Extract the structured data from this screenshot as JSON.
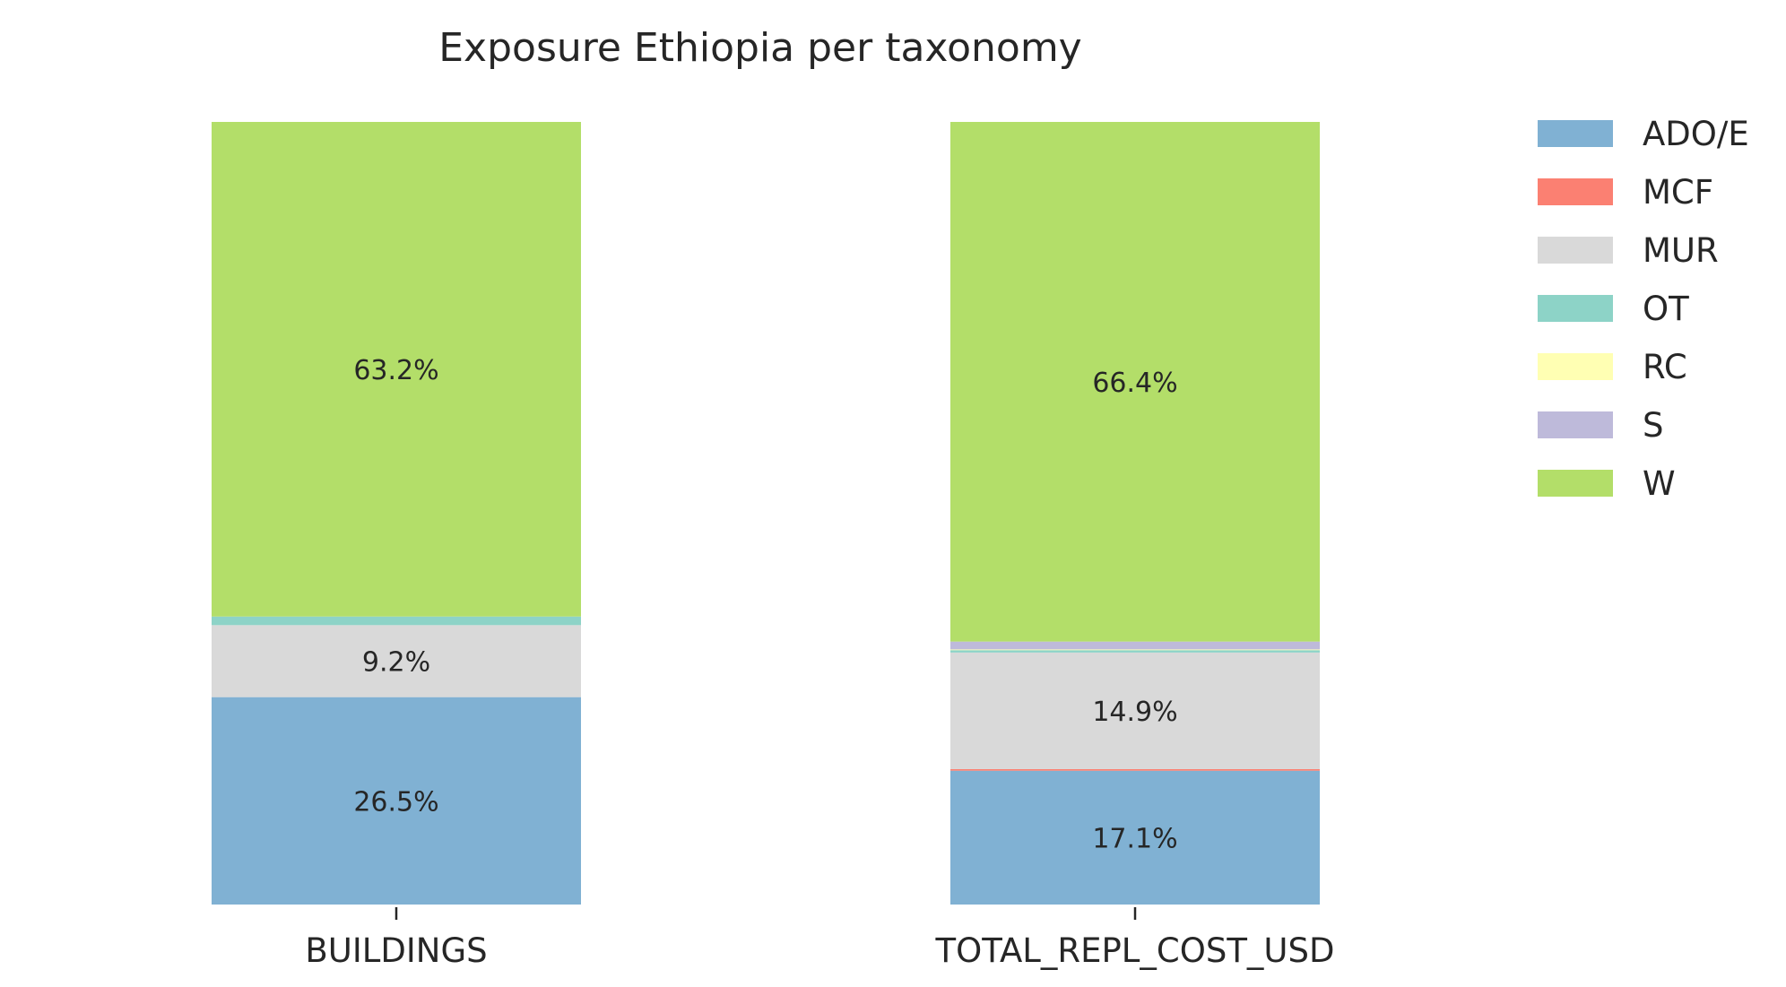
{
  "chart_data": {
    "type": "bar",
    "stacked": true,
    "normalized": true,
    "title": "Exposure Ethiopia per taxonomy",
    "categories": [
      "BUILDINGS",
      "TOTAL_REPL_COST_USD"
    ],
    "series": [
      {
        "name": "ADO/E",
        "color": "#80b1d3",
        "values": [
          26.5,
          17.1
        ],
        "labels": [
          "26.5%",
          "17.1%"
        ]
      },
      {
        "name": "MCF",
        "color": "#fb8072",
        "values": [
          0.0,
          0.2
        ],
        "labels": [
          "",
          ""
        ]
      },
      {
        "name": "MUR",
        "color": "#d9d9d9",
        "values": [
          9.2,
          14.9
        ],
        "labels": [
          "9.2%",
          "14.9%"
        ]
      },
      {
        "name": "OT",
        "color": "#8dd3c7",
        "values": [
          1.1,
          0.3
        ],
        "labels": [
          "",
          ""
        ]
      },
      {
        "name": "RC",
        "color": "#ffffb3",
        "values": [
          0.0,
          0.1
        ],
        "labels": [
          "",
          ""
        ]
      },
      {
        "name": "S",
        "color": "#bebada",
        "values": [
          0.0,
          1.0
        ],
        "labels": [
          "",
          ""
        ]
      },
      {
        "name": "W",
        "color": "#b3de69",
        "values": [
          63.2,
          66.4
        ],
        "labels": [
          "63.2%",
          "66.4%"
        ]
      }
    ],
    "ylim": [
      0,
      100
    ],
    "grid": false,
    "legend_position": "right"
  }
}
